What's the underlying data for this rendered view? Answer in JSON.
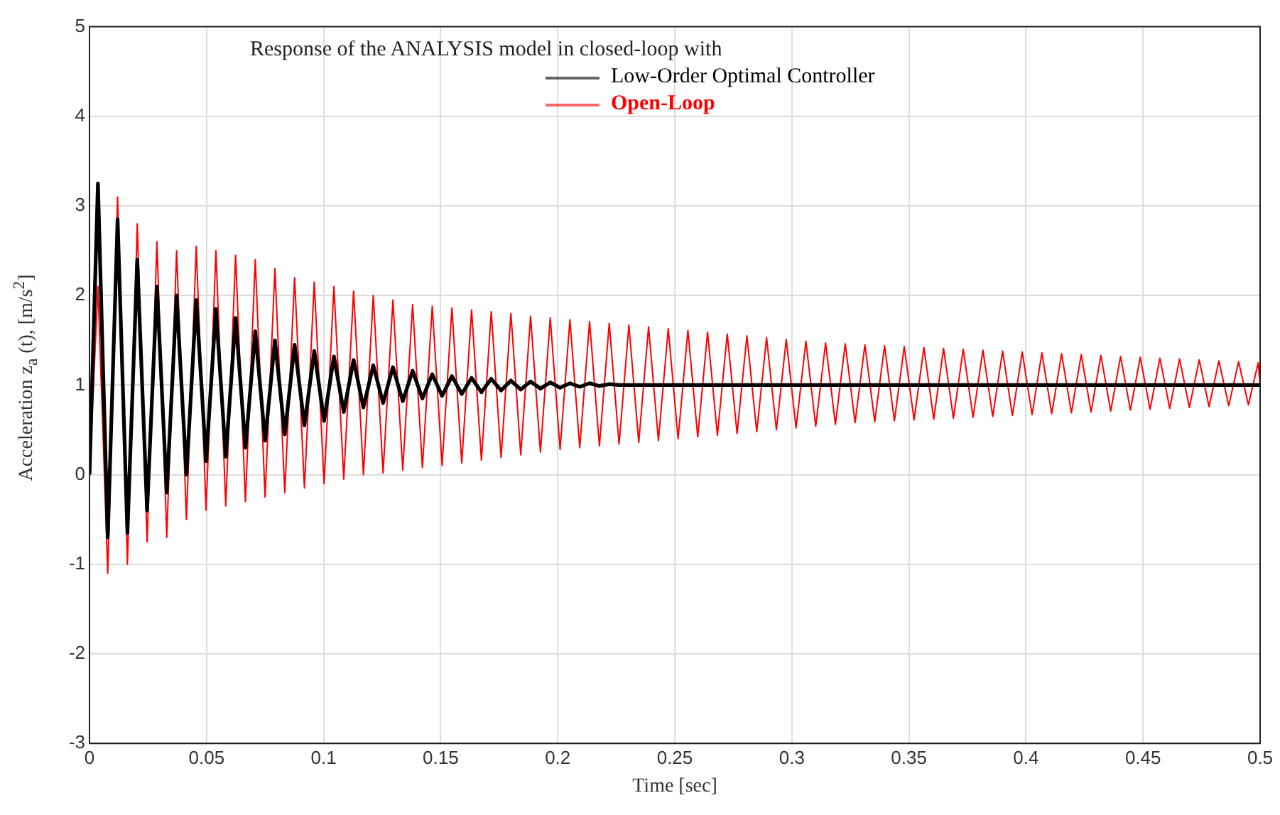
{
  "chart_data": {
    "type": "line",
    "legend_title": "Response of the ANALYSIS model in closed-loop with",
    "xlabel": "Time [sec]",
    "ylabel": "Acceleration z$_{a}$ (t), [m/s$^{2}$]",
    "x": [
      0,
      0.0036,
      0.0078,
      0.012,
      0.0162,
      0.0204,
      0.0246,
      0.0288,
      0.033,
      0.0372,
      0.0414,
      0.0456,
      0.0498,
      0.054,
      0.0582,
      0.0624,
      0.0666,
      0.0708,
      0.075,
      0.0792,
      0.0834,
      0.0876,
      0.0918,
      0.096,
      0.1002,
      0.1044,
      0.1086,
      0.1128,
      0.117,
      0.1212,
      0.1254,
      0.1296,
      0.1338,
      0.138,
      0.1422,
      0.1464,
      0.1506,
      0.1548,
      0.159,
      0.1632,
      0.1674,
      0.1716,
      0.1758,
      0.18,
      0.1842,
      0.1884,
      0.1926,
      0.1968,
      0.201,
      0.2052,
      0.2094,
      0.2136,
      0.2178,
      0.222,
      0.2262,
      0.2304,
      0.2346,
      0.2388,
      0.243,
      0.2472,
      0.2514,
      0.2556,
      0.2598,
      0.264,
      0.2682,
      0.2724,
      0.2766,
      0.2808,
      0.285,
      0.2892,
      0.2934,
      0.2976,
      0.3018,
      0.306,
      0.3102,
      0.3144,
      0.3186,
      0.3228,
      0.327,
      0.3312,
      0.3354,
      0.3396,
      0.3438,
      0.348,
      0.3522,
      0.3564,
      0.3606,
      0.3648,
      0.369,
      0.3732,
      0.3774,
      0.3816,
      0.3858,
      0.39,
      0.3942,
      0.3984,
      0.4026,
      0.4068,
      0.411,
      0.4152,
      0.4194,
      0.4236,
      0.4278,
      0.432,
      0.4362,
      0.4404,
      0.4446,
      0.4488,
      0.453,
      0.4572,
      0.4614,
      0.4656,
      0.4698,
      0.474,
      0.4782,
      0.4824,
      0.4866,
      0.4908,
      0.495,
      0.4992,
      0.5
    ],
    "series": [
      {
        "name": "Low-Order Optimal Controller",
        "color": "#000000",
        "values": [
          0,
          3.25,
          -0.7,
          2.85,
          -0.65,
          2.4,
          -0.4,
          2.1,
          -0.2,
          2.0,
          0.0,
          1.95,
          0.15,
          1.85,
          0.2,
          1.75,
          0.3,
          1.6,
          0.38,
          1.5,
          0.45,
          1.45,
          0.55,
          1.38,
          0.6,
          1.32,
          0.7,
          1.28,
          0.75,
          1.22,
          0.8,
          1.2,
          0.82,
          1.16,
          0.85,
          1.12,
          0.88,
          1.1,
          0.9,
          1.08,
          0.92,
          1.07,
          0.94,
          1.05,
          0.95,
          1.04,
          0.96,
          1.03,
          0.97,
          1.02,
          0.98,
          1.02,
          0.99,
          1.01,
          1,
          1,
          1,
          1,
          1,
          1,
          1,
          1,
          1,
          1,
          1,
          1,
          1,
          1,
          1,
          1,
          1,
          1,
          1,
          1,
          1,
          1,
          1,
          1,
          1,
          1,
          1,
          1,
          1,
          1,
          1,
          1,
          1,
          1,
          1,
          1,
          1,
          1,
          1,
          1,
          1,
          1,
          1,
          1,
          1,
          1,
          1,
          1,
          1,
          1,
          1,
          1,
          1,
          1,
          1,
          1,
          1,
          1,
          1,
          1,
          1,
          1,
          1,
          1,
          1,
          1,
          1
        ]
      },
      {
        "name": "Open-Loop",
        "color": "#ff0000",
        "values": [
          0,
          2.1,
          -1.1,
          3.1,
          -1.0,
          2.8,
          -0.75,
          2.6,
          -0.7,
          2.5,
          -0.5,
          2.55,
          -0.4,
          2.5,
          -0.35,
          2.45,
          -0.3,
          2.4,
          -0.25,
          2.3,
          -0.2,
          2.2,
          -0.15,
          2.15,
          -0.1,
          2.1,
          -0.05,
          2.05,
          0.0,
          2.0,
          0.02,
          1.95,
          0.05,
          1.9,
          0.08,
          1.88,
          0.1,
          1.86,
          0.13,
          1.84,
          0.16,
          1.82,
          0.19,
          1.8,
          0.22,
          1.77,
          0.25,
          1.75,
          0.28,
          1.73,
          0.3,
          1.71,
          0.32,
          1.69,
          0.34,
          1.67,
          0.36,
          1.65,
          0.38,
          1.63,
          0.4,
          1.61,
          0.42,
          1.59,
          0.44,
          1.57,
          0.46,
          1.55,
          0.48,
          1.53,
          0.5,
          1.51,
          0.52,
          1.49,
          0.54,
          1.47,
          0.56,
          1.46,
          0.58,
          1.45,
          0.59,
          1.44,
          0.6,
          1.43,
          0.61,
          1.42,
          0.62,
          1.41,
          0.63,
          1.4,
          0.64,
          1.39,
          0.65,
          1.38,
          0.66,
          1.37,
          0.67,
          1.36,
          0.68,
          1.35,
          0.69,
          1.34,
          0.7,
          1.33,
          0.71,
          1.32,
          0.72,
          1.31,
          0.73,
          1.3,
          0.74,
          1.29,
          0.75,
          1.28,
          0.76,
          1.27,
          0.77,
          1.26,
          0.78,
          1.25,
          1.0
        ]
      }
    ],
    "xlim": [
      0,
      0.5
    ],
    "ylim": [
      -3,
      5
    ],
    "xticks": [
      0,
      0.05,
      0.1,
      0.15,
      0.2,
      0.25,
      0.3,
      0.35,
      0.4,
      0.45,
      0.5
    ],
    "yticks": [
      -3,
      -2,
      -1,
      0,
      1,
      2,
      3,
      4,
      5
    ],
    "grid": true,
    "legend": "top"
  }
}
